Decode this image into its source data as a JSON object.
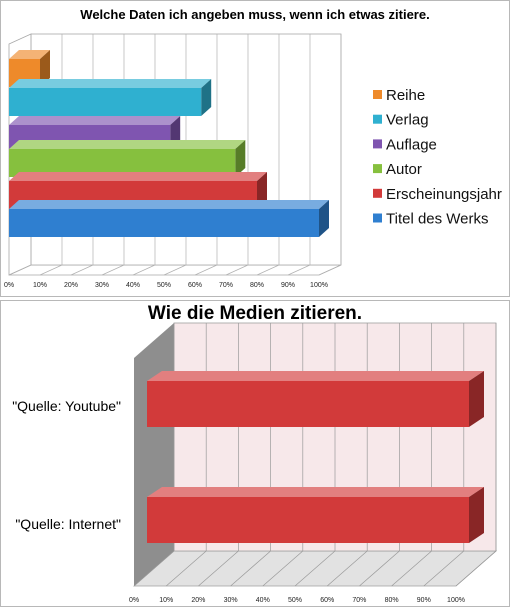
{
  "chart_data": [
    {
      "type": "bar",
      "orientation": "horizontal",
      "style": "3d",
      "title": "Welche Daten ich angeben muss, wenn ich etwas zitiere.",
      "xlim": [
        0,
        100
      ],
      "x_ticks": [
        "0%",
        "10%",
        "20%",
        "30%",
        "40%",
        "50%",
        "60%",
        "70%",
        "80%",
        "90%",
        "100%"
      ],
      "grid": true,
      "legend_position": "right",
      "series": [
        {
          "name": "Titel des Werks",
          "value": 100,
          "color": "#2f7fd0"
        },
        {
          "name": "Erscheinungsjahr",
          "value": 80,
          "color": "#d23a3a"
        },
        {
          "name": "Autor",
          "value": 73,
          "color": "#86c03e"
        },
        {
          "name": "Auflage",
          "value": 52,
          "color": "#7f55b0"
        },
        {
          "name": "Verlag",
          "value": 62,
          "color": "#2fb0d0"
        },
        {
          "name": "Reihe",
          "value": 10,
          "color": "#ee8a2a"
        }
      ]
    },
    {
      "type": "bar",
      "orientation": "horizontal",
      "style": "3d",
      "title": "Wie die Medien zitieren.",
      "xlim": [
        0,
        100
      ],
      "x_ticks": [
        "0%",
        "10%",
        "20%",
        "30%",
        "40%",
        "50%",
        "60%",
        "70%",
        "80%",
        "90%",
        "100%"
      ],
      "grid": true,
      "categories": [
        "\"Quelle: Youtube\"",
        "\"Quelle: Internet\""
      ],
      "series": [
        {
          "values": [
            100,
            100
          ],
          "color": "#d23a3a"
        }
      ],
      "wall_color": "#f7e8ea"
    }
  ]
}
